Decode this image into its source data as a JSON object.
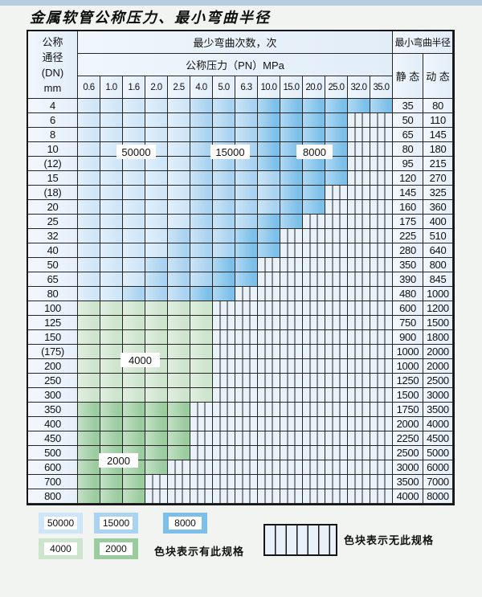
{
  "title": "金属软管公称压力、最小弯曲半径",
  "colors": {
    "50000": "#cfe6f8",
    "15000": "#a9d3f0",
    "8000": "#7cc0ea",
    "4000": "#cde4cd",
    "2000": "#9bcc9f",
    "grid_line": "#262626",
    "no_spec_bg": "#eaf2f9",
    "top_strip": "#b7cde2"
  },
  "table": {
    "header": {
      "dn_lines": [
        "公称",
        "通径",
        "(DN)",
        "mm"
      ],
      "cycles_label": "最少弯曲次数，次",
      "pressure_label": "公称压力（PN）MPa",
      "pressures": [
        "0.6",
        "1.0",
        "1.6",
        "2.0",
        "2.5",
        "4.0",
        "5.0",
        "6.3",
        "10.0",
        "15.0",
        "20.0",
        "25.0",
        "32.0",
        "35.0"
      ],
      "radius_label": "最小弯曲半径",
      "static_label": "静 态",
      "dynamic_label": "动 态"
    },
    "rows": [
      {
        "dn": "4",
        "zones": [
          {
            "until": 5,
            "cycles": "50000"
          },
          {
            "until": 8,
            "cycles": "15000"
          },
          {
            "until": 14,
            "cycles": "8000"
          }
        ],
        "static": "35",
        "dynamic": "80"
      },
      {
        "dn": "6",
        "zones": [
          {
            "until": 5,
            "cycles": "50000"
          },
          {
            "until": 8,
            "cycles": "15000"
          },
          {
            "until": 12,
            "cycles": "8000"
          }
        ],
        "static": "50",
        "dynamic": "110"
      },
      {
        "dn": "8",
        "zones": [
          {
            "until": 5,
            "cycles": "50000"
          },
          {
            "until": 8,
            "cycles": "15000"
          },
          {
            "until": 12,
            "cycles": "8000"
          }
        ],
        "static": "65",
        "dynamic": "145"
      },
      {
        "dn": "10",
        "zones": [
          {
            "until": 5,
            "cycles": "50000"
          },
          {
            "until": 8,
            "cycles": "15000"
          },
          {
            "until": 12,
            "cycles": "8000"
          }
        ],
        "static": "80",
        "dynamic": "180"
      },
      {
        "dn": "(12)",
        "zones": [
          {
            "until": 5,
            "cycles": "50000"
          },
          {
            "until": 8,
            "cycles": "15000"
          },
          {
            "until": 12,
            "cycles": "8000"
          }
        ],
        "static": "95",
        "dynamic": "215"
      },
      {
        "dn": "15",
        "zones": [
          {
            "until": 5,
            "cycles": "50000"
          },
          {
            "until": 9,
            "cycles": "15000"
          },
          {
            "until": 12,
            "cycles": "8000"
          }
        ],
        "static": "120",
        "dynamic": "270"
      },
      {
        "dn": "(18)",
        "zones": [
          {
            "until": 5,
            "cycles": "50000"
          },
          {
            "until": 9,
            "cycles": "15000"
          },
          {
            "until": 11,
            "cycles": "8000"
          }
        ],
        "static": "145",
        "dynamic": "325"
      },
      {
        "dn": "20",
        "zones": [
          {
            "until": 5,
            "cycles": "50000"
          },
          {
            "until": 9,
            "cycles": "15000"
          },
          {
            "until": 11,
            "cycles": "8000"
          }
        ],
        "static": "160",
        "dynamic": "360"
      },
      {
        "dn": "25",
        "zones": [
          {
            "until": 5,
            "cycles": "50000"
          },
          {
            "until": 8,
            "cycles": "15000"
          },
          {
            "until": 10,
            "cycles": "8000"
          }
        ],
        "static": "175",
        "dynamic": "400"
      },
      {
        "dn": "32",
        "zones": [
          {
            "until": 4,
            "cycles": "50000"
          },
          {
            "until": 7,
            "cycles": "15000"
          },
          {
            "until": 9,
            "cycles": "8000"
          }
        ],
        "static": "225",
        "dynamic": "510"
      },
      {
        "dn": "40",
        "zones": [
          {
            "until": 4,
            "cycles": "50000"
          },
          {
            "until": 7,
            "cycles": "15000"
          },
          {
            "until": 9,
            "cycles": "8000"
          }
        ],
        "static": "280",
        "dynamic": "640"
      },
      {
        "dn": "50",
        "zones": [
          {
            "until": 3,
            "cycles": "50000"
          },
          {
            "until": 6,
            "cycles": "15000"
          },
          {
            "until": 8,
            "cycles": "8000"
          }
        ],
        "static": "350",
        "dynamic": "800"
      },
      {
        "dn": "65",
        "zones": [
          {
            "until": 3,
            "cycles": "50000"
          },
          {
            "until": 6,
            "cycles": "15000"
          },
          {
            "until": 8,
            "cycles": "8000"
          }
        ],
        "static": "390",
        "dynamic": "845"
      },
      {
        "dn": "80",
        "zones": [
          {
            "until": 2,
            "cycles": "50000"
          },
          {
            "until": 5,
            "cycles": "15000"
          },
          {
            "until": 7,
            "cycles": "8000"
          }
        ],
        "static": "480",
        "dynamic": "1000"
      },
      {
        "dn": "100",
        "zones": [
          {
            "until": 6,
            "cycles": "4000"
          }
        ],
        "static": "600",
        "dynamic": "1200"
      },
      {
        "dn": "125",
        "zones": [
          {
            "until": 6,
            "cycles": "4000"
          }
        ],
        "static": "750",
        "dynamic": "1500"
      },
      {
        "dn": "150",
        "zones": [
          {
            "until": 6,
            "cycles": "4000"
          }
        ],
        "static": "900",
        "dynamic": "1800"
      },
      {
        "dn": "(175)",
        "zones": [
          {
            "until": 6,
            "cycles": "4000"
          }
        ],
        "static": "1000",
        "dynamic": "2000"
      },
      {
        "dn": "200",
        "zones": [
          {
            "until": 6,
            "cycles": "4000"
          }
        ],
        "static": "1000",
        "dynamic": "2000"
      },
      {
        "dn": "250",
        "zones": [
          {
            "until": 6,
            "cycles": "4000"
          }
        ],
        "static": "1250",
        "dynamic": "2500"
      },
      {
        "dn": "300",
        "zones": [
          {
            "until": 6,
            "cycles": "4000"
          }
        ],
        "static": "1500",
        "dynamic": "3000"
      },
      {
        "dn": "350",
        "zones": [
          {
            "until": 5,
            "cycles": "2000"
          }
        ],
        "static": "1750",
        "dynamic": "3500"
      },
      {
        "dn": "400",
        "zones": [
          {
            "until": 5,
            "cycles": "2000"
          }
        ],
        "static": "2000",
        "dynamic": "4000"
      },
      {
        "dn": "450",
        "zones": [
          {
            "until": 5,
            "cycles": "2000"
          }
        ],
        "static": "2250",
        "dynamic": "4500"
      },
      {
        "dn": "500",
        "zones": [
          {
            "until": 5,
            "cycles": "2000"
          }
        ],
        "static": "2500",
        "dynamic": "5000"
      },
      {
        "dn": "600",
        "zones": [
          {
            "until": 4,
            "cycles": "2000"
          }
        ],
        "static": "3000",
        "dynamic": "6000"
      },
      {
        "dn": "700",
        "zones": [
          {
            "until": 3,
            "cycles": "2000"
          }
        ],
        "static": "3500",
        "dynamic": "7000"
      },
      {
        "dn": "800",
        "zones": [
          {
            "until": 3,
            "cycles": "2000"
          }
        ],
        "static": "4000",
        "dynamic": "8000"
      }
    ]
  },
  "overlays": {
    "l50000": "50000",
    "l15000": "15000",
    "l8000": "8000",
    "l4000": "4000",
    "l2000": "2000"
  },
  "legend": {
    "swatches": [
      {
        "label": "50000"
      },
      {
        "label": "15000"
      },
      {
        "label": "8000"
      },
      {
        "label": "4000"
      },
      {
        "label": "2000"
      }
    ],
    "has_spec_caption": "色块表示有此规格",
    "no_spec_caption": "色块表示无此规格"
  }
}
